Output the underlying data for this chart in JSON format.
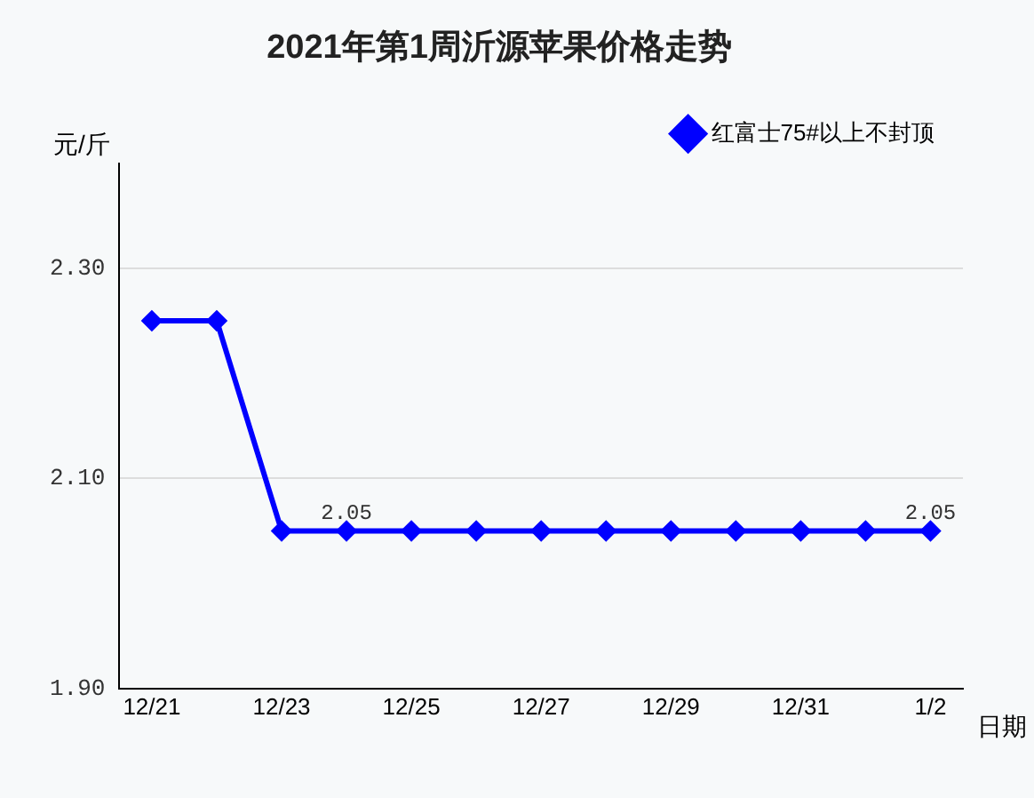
{
  "chart_data": {
    "type": "line",
    "title": "2021年第1周沂源苹果价格走势",
    "xlabel": "日期",
    "ylabel": "元/斤",
    "categories": [
      "12/21",
      null,
      "12/23",
      null,
      "12/25",
      null,
      "12/27",
      null,
      "12/29",
      null,
      "12/31",
      null,
      "1/2"
    ],
    "series": [
      {
        "name": "红富士75#以上不封顶",
        "color": "#0000ff",
        "values": [
          2.25,
          2.25,
          2.05,
          2.05,
          2.05,
          2.05,
          2.05,
          2.05,
          2.05,
          2.05,
          2.05,
          2.05,
          2.05
        ],
        "value_labels": [
          null,
          null,
          null,
          "2.05",
          null,
          null,
          null,
          null,
          null,
          null,
          null,
          null,
          "2.05"
        ]
      }
    ],
    "ylim": [
      1.9,
      2.4
    ],
    "yticks": [
      {
        "value": 1.9,
        "label": "1.90"
      },
      {
        "value": 2.1,
        "label": "2.10"
      },
      {
        "value": 2.3,
        "label": "2.30"
      }
    ],
    "grid": "y",
    "legend": "top right",
    "marker": "diamond",
    "line_style": "solid"
  }
}
